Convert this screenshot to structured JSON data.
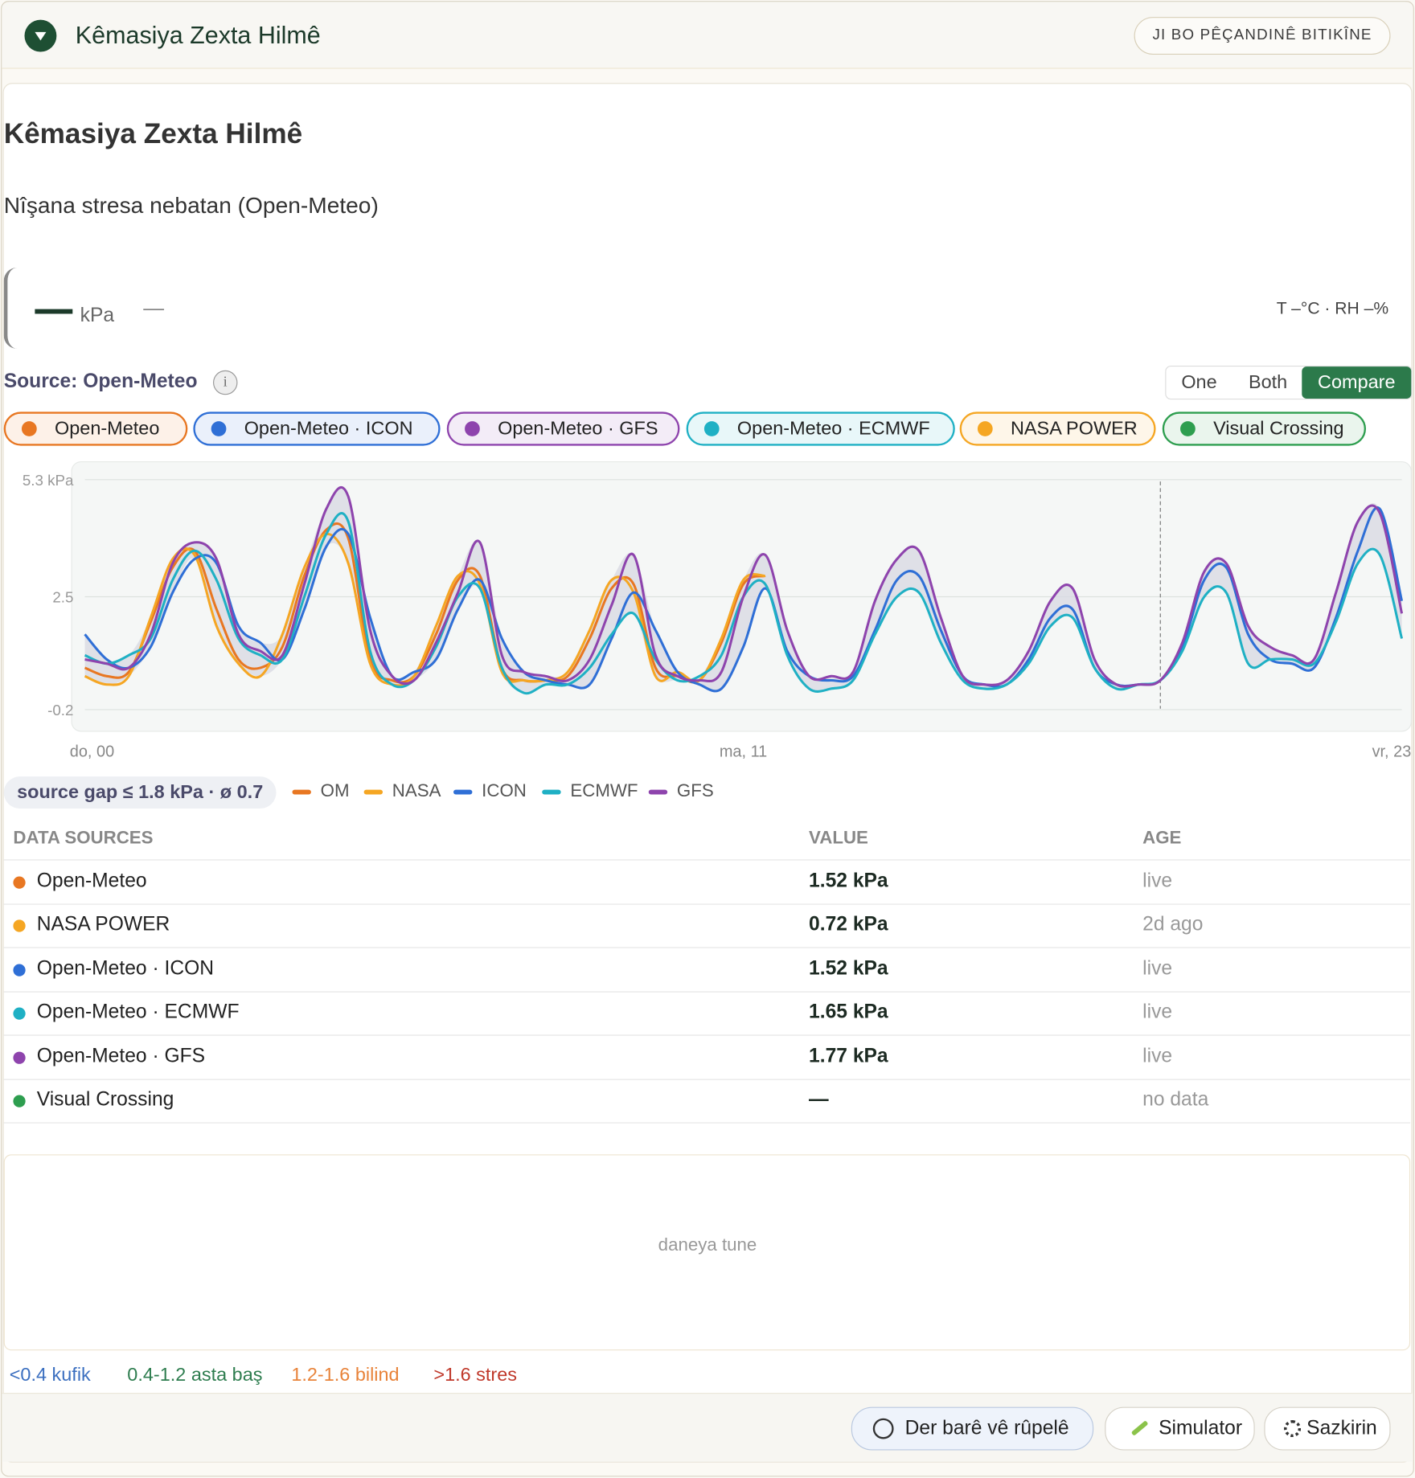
{
  "header": {
    "title": "Kêmasiya Zexta Hilmê",
    "button": "JI BO PÊÇANDINÊ BITIKÎNE"
  },
  "card": {
    "title": "Kêmasiya Zexta Hilmê",
    "subtitle": "Nîşana stresa nebatan (Open-Meteo)",
    "reading": {
      "unit": "kPa",
      "delta": "—",
      "weather": "T –°C · RH –%"
    },
    "source": "Source: Open-Meteo",
    "modes": [
      "One",
      "Both",
      "Compare"
    ],
    "active_mode": "Compare",
    "chips": [
      {
        "name": "Open-Meteo",
        "color": "#e87722"
      },
      {
        "name": "Open-Meteo · ICON",
        "color": "#2f6fd6"
      },
      {
        "name": "Open-Meteo · GFS",
        "color": "#8e44ad"
      },
      {
        "name": "Open-Meteo · ECMWF",
        "color": "#1fb0c4"
      },
      {
        "name": "NASA POWER",
        "color": "#f5a623"
      },
      {
        "name": "Visual Crossing",
        "color": "#2e9e4f"
      }
    ]
  },
  "chart_data": {
    "type": "line",
    "grid": true,
    "categories": [
      "do, 00",
      null,
      null,
      null,
      null,
      null,
      null,
      null,
      null,
      null,
      null,
      null,
      null,
      null,
      null,
      null,
      null,
      null,
      null,
      null,
      null,
      null,
      null,
      null,
      null,
      null,
      null,
      null,
      null,
      null,
      "ma, 11",
      null,
      null,
      null,
      null,
      null,
      null,
      null,
      null,
      null,
      null,
      null,
      null,
      null,
      null,
      null,
      null,
      null,
      null,
      null,
      null,
      null,
      null,
      null,
      null,
      null,
      null,
      null,
      null,
      null,
      "vr, 23"
    ],
    "ylim": [
      -0.2,
      5.3
    ],
    "yticks": [
      {
        "value": 5.3,
        "label": "5.3 kPa"
      },
      2.5,
      -0.2
    ],
    "now_index": 49,
    "series": [
      {
        "name": "OM",
        "color": "#e87722",
        "values": [
          0.8,
          0.6,
          0.7,
          1.9,
          3.2,
          3.6,
          2.2,
          1.0,
          0.8,
          1.3,
          3.0,
          4.1,
          3.9,
          1.0,
          0.5,
          0.6,
          1.6,
          2.9,
          3.0,
          0.8,
          0.5,
          0.5,
          0.6,
          1.5,
          2.7,
          2.8,
          0.8,
          0.6,
          0.5,
          1.4,
          2.8,
          3.0,
          null,
          null,
          null,
          null,
          null,
          null,
          null,
          null,
          null,
          null,
          null,
          null,
          null,
          null,
          null,
          null,
          null,
          null,
          null,
          null,
          null,
          null,
          null,
          null,
          null,
          null,
          null,
          null,
          null
        ]
      },
      {
        "name": "NASA",
        "color": "#f5a623",
        "values": [
          0.6,
          0.4,
          0.6,
          2.0,
          3.4,
          3.5,
          1.8,
          0.9,
          0.6,
          1.6,
          3.2,
          4.0,
          3.3,
          0.9,
          0.4,
          0.6,
          1.8,
          3.0,
          2.8,
          0.7,
          0.5,
          0.5,
          0.7,
          1.7,
          2.9,
          2.6,
          0.6,
          0.7,
          0.5,
          1.5,
          2.9,
          3.0,
          null,
          null,
          null,
          null,
          null,
          null,
          null,
          null,
          null,
          null,
          null,
          null,
          null,
          null,
          null,
          null,
          null,
          null,
          null,
          null,
          null,
          null,
          null,
          null,
          null,
          null,
          null,
          null,
          null
        ]
      },
      {
        "name": "ICON",
        "color": "#2f6fd6",
        "values": [
          1.6,
          1.0,
          0.8,
          1.3,
          2.6,
          3.4,
          3.3,
          1.8,
          1.4,
          1.0,
          2.2,
          3.7,
          4.0,
          2.0,
          0.6,
          0.7,
          1.0,
          2.2,
          2.9,
          1.5,
          0.7,
          0.5,
          0.4,
          0.4,
          1.5,
          2.6,
          1.7,
          0.7,
          0.4,
          0.3,
          1.3,
          2.7,
          1.2,
          0.6,
          0.5,
          0.6,
          1.7,
          2.9,
          3.0,
          1.7,
          0.6,
          0.4,
          0.4,
          1.0,
          2.0,
          2.2,
          0.8,
          0.4,
          0.4,
          0.5,
          1.3,
          2.9,
          3.2,
          1.6,
          1.0,
          0.9,
          0.8,
          2.0,
          3.6,
          4.6,
          2.4
        ]
      },
      {
        "name": "ECMWF",
        "color": "#1fb0c4",
        "values": [
          1.1,
          0.9,
          1.1,
          1.5,
          2.9,
          3.6,
          2.9,
          1.5,
          1.1,
          1.0,
          2.5,
          4.0,
          4.3,
          1.2,
          0.4,
          0.5,
          1.3,
          2.5,
          2.7,
          0.8,
          0.2,
          0.4,
          0.4,
          0.8,
          1.6,
          2.1,
          1.0,
          0.5,
          0.6,
          1.1,
          2.5,
          2.8,
          1.1,
          0.3,
          0.3,
          0.5,
          1.6,
          2.5,
          2.6,
          1.4,
          0.5,
          0.3,
          0.4,
          0.9,
          1.8,
          2.0,
          0.8,
          0.3,
          0.4,
          0.5,
          1.2,
          2.5,
          2.6,
          0.9,
          1.0,
          1.0,
          0.9,
          1.9,
          3.3,
          3.5,
          1.5
        ]
      },
      {
        "name": "GFS",
        "color": "#8e44ad",
        "values": [
          1.0,
          0.9,
          0.8,
          1.6,
          3.3,
          3.8,
          3.4,
          1.6,
          1.2,
          1.1,
          2.8,
          4.6,
          4.9,
          1.7,
          0.6,
          0.5,
          1.4,
          2.6,
          3.8,
          1.1,
          0.7,
          0.6,
          0.5,
          1.0,
          2.3,
          3.5,
          1.1,
          0.6,
          0.5,
          0.7,
          2.5,
          3.5,
          1.7,
          0.6,
          0.6,
          0.7,
          2.4,
          3.4,
          3.6,
          2.0,
          0.6,
          0.4,
          0.5,
          1.2,
          2.4,
          2.7,
          1.0,
          0.4,
          0.4,
          0.5,
          1.4,
          3.1,
          3.3,
          1.8,
          1.3,
          1.1,
          1.0,
          2.6,
          4.3,
          4.5,
          2.1
        ]
      }
    ]
  },
  "legend_summary": "source gap ≤ 1.8 kPa · ø 0.7",
  "table": {
    "headers": [
      "DATA SOURCES",
      "VALUE",
      "AGE"
    ],
    "rows": [
      {
        "name": "Open-Meteo",
        "color": "#e87722",
        "value": "1.52 kPa",
        "age": "live"
      },
      {
        "name": "NASA POWER",
        "color": "#f5a623",
        "value": "0.72 kPa",
        "age": "2d ago"
      },
      {
        "name": "Open-Meteo · ICON",
        "color": "#2f6fd6",
        "value": "1.52 kPa",
        "age": "live"
      },
      {
        "name": "Open-Meteo · ECMWF",
        "color": "#1fb0c4",
        "value": "1.65 kPa",
        "age": "live"
      },
      {
        "name": "Open-Meteo · GFS",
        "color": "#8e44ad",
        "value": "1.77 kPa",
        "age": "live"
      },
      {
        "name": "Visual Crossing",
        "color": "#2e9e4f",
        "value": "—",
        "age": "no data"
      }
    ]
  },
  "empty_panel": "daneya tune",
  "scale": [
    {
      "label": "<0.4 kufik",
      "color": "#3b6fc0"
    },
    {
      "label": "0.4-1.2 asta baş",
      "color": "#2e7d4f"
    },
    {
      "label": "1.2-1.6 bilind",
      "color": "#e8833a"
    },
    {
      "label": ">1.6 stres",
      "color": "#c0392b"
    }
  ],
  "footer": {
    "buttons": [
      "Der barê vê rûpelê",
      "Simulator",
      "Sazkirin"
    ]
  }
}
